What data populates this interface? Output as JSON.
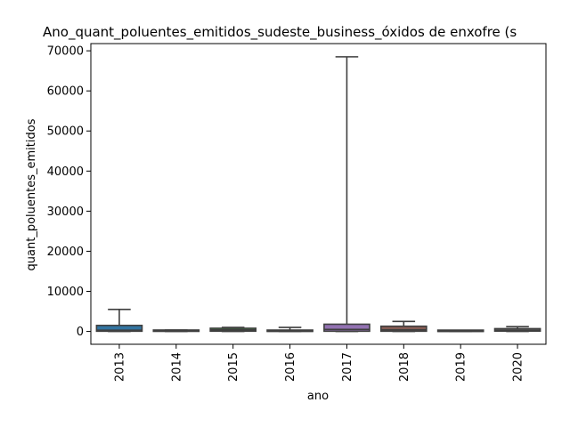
{
  "chart_data": {
    "type": "box",
    "title": "Ano_quant_poluentes_emitidos_sudeste_business_óxidos de enxofre (s",
    "xlabel": "ano",
    "ylabel": "quant_poluentes_emitidos",
    "ylim": [
      -3200,
      71800
    ],
    "yticks": [
      0,
      10000,
      20000,
      30000,
      40000,
      50000,
      60000,
      70000
    ],
    "grid": false,
    "categories": [
      "2013",
      "2014",
      "2015",
      "2016",
      "2017",
      "2018",
      "2019",
      "2020"
    ],
    "boxes": [
      {
        "category": "2013",
        "whisker_low": 0,
        "q1": 50,
        "median": 300,
        "q3": 1500,
        "whisker_high": 5500,
        "color": "#3274a1"
      },
      {
        "category": "2014",
        "whisker_low": 0,
        "q1": 20,
        "median": 80,
        "q3": 180,
        "whisker_high": 350,
        "color": "#e1812c"
      },
      {
        "category": "2015",
        "whisker_low": 0,
        "q1": 60,
        "median": 400,
        "q3": 800,
        "whisker_high": 1000,
        "color": "#3a923a"
      },
      {
        "category": "2016",
        "whisker_low": 0,
        "q1": 10,
        "median": 60,
        "q3": 150,
        "whisker_high": 1000,
        "color": "#c03d3e"
      },
      {
        "category": "2017",
        "whisker_low": 0,
        "q1": 50,
        "median": 500,
        "q3": 1800,
        "whisker_high": 68500,
        "color": "#9372b2"
      },
      {
        "category": "2018",
        "whisker_low": 0,
        "q1": 50,
        "median": 400,
        "q3": 1300,
        "whisker_high": 2500,
        "color": "#845b53"
      },
      {
        "category": "2019",
        "whisker_low": 0,
        "q1": 0,
        "median": 20,
        "q3": 60,
        "whisker_high": 120,
        "color": "#d684bd"
      },
      {
        "category": "2020",
        "whisker_low": 0,
        "q1": 80,
        "median": 300,
        "q3": 700,
        "whisker_high": 1200,
        "color": "#7f7f7f"
      }
    ]
  }
}
